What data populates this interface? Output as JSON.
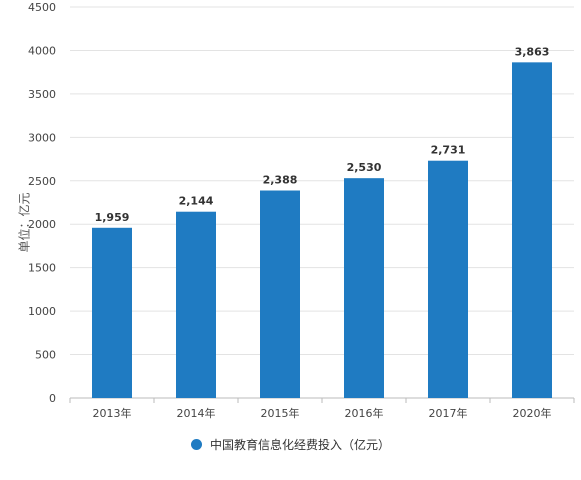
{
  "chart_data": {
    "type": "bar",
    "title": "",
    "xlabel": "",
    "ylabel": "单位：亿元",
    "categories": [
      "2013年",
      "2014年",
      "2015年",
      "2016年",
      "2017年",
      "2020年"
    ],
    "series": [
      {
        "name": "中国教育信息化经费投入（亿元）",
        "values": [
          1959,
          2144,
          2388,
          2530,
          2731,
          3863
        ]
      }
    ],
    "data_labels": [
      "1,959",
      "2,144",
      "2,388",
      "2,530",
      "2,731",
      "3,863"
    ],
    "yticks": [
      0,
      500,
      1000,
      1500,
      2000,
      2500,
      3000,
      3500,
      4000,
      4500
    ],
    "ylim": [
      0,
      4500
    ],
    "grid": true,
    "legend_position": "bottom",
    "bar_color": "#1f7bc2"
  }
}
